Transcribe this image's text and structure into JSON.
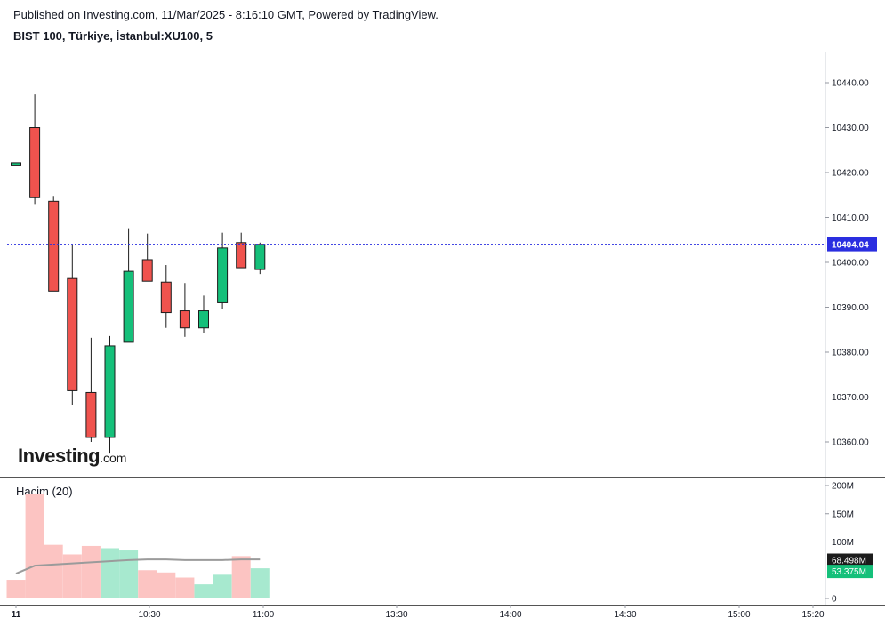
{
  "header": {
    "published": "Published on Investing.com, 11/Mar/2025 - 8:16:10 GMT, Powered by TradingView.",
    "symbol": "BIST 100, Türkiye, İstanbul:XU100, 5"
  },
  "logo": {
    "main": "Investing",
    "suffix": ".com"
  },
  "colors": {
    "up": "#15c07a",
    "down": "#f0534e",
    "up_vol": "#a7e9cf",
    "down_vol": "#fcc4c2",
    "last_price_line": "#2a2ee0",
    "ma_line": "#9b9b9b"
  },
  "chart_data": [
    {
      "type": "candlestick",
      "title": "BIST 100, Türkiye, İstanbul:XU100, 5",
      "interval_minutes": 5,
      "ylim": [
        10354,
        10444
      ],
      "y_ticks": [
        "10360.00",
        "10370.00",
        "10380.00",
        "10390.00",
        "10400.00",
        "10410.00",
        "10420.00",
        "10430.00",
        "10440.00"
      ],
      "last_price": "10404.04",
      "candles": [
        {
          "time": "09:55",
          "open": 10421.5,
          "high": 10422.2,
          "low": 10421.5,
          "close": 10422.2
        },
        {
          "time": "10:00",
          "open": 10430.0,
          "high": 10437.4,
          "low": 10413.0,
          "close": 10414.4
        },
        {
          "time": "10:05",
          "open": 10413.6,
          "high": 10414.8,
          "low": 10393.6,
          "close": 10393.6
        },
        {
          "time": "10:10",
          "open": 10396.4,
          "high": 10403.8,
          "low": 10368.2,
          "close": 10371.4
        },
        {
          "time": "10:15",
          "open": 10371.0,
          "high": 10383.2,
          "low": 10360.0,
          "close": 10361.0
        },
        {
          "time": "10:20",
          "open": 10361.0,
          "high": 10383.6,
          "low": 10357.4,
          "close": 10381.4
        },
        {
          "time": "10:25",
          "open": 10382.2,
          "high": 10407.6,
          "low": 10382.2,
          "close": 10398.0
        },
        {
          "time": "10:30",
          "open": 10400.6,
          "high": 10406.4,
          "low": 10395.8,
          "close": 10395.8
        },
        {
          "time": "10:35",
          "open": 10395.6,
          "high": 10399.4,
          "low": 10385.4,
          "close": 10388.8
        },
        {
          "time": "10:40",
          "open": 10389.2,
          "high": 10395.4,
          "low": 10383.4,
          "close": 10385.4
        },
        {
          "time": "10:45",
          "open": 10385.4,
          "high": 10392.6,
          "low": 10384.2,
          "close": 10389.2
        },
        {
          "time": "10:50",
          "open": 10391.0,
          "high": 10406.6,
          "low": 10389.6,
          "close": 10403.2
        },
        {
          "time": "10:55",
          "open": 10404.4,
          "high": 10406.6,
          "low": 10399.0,
          "close": 10398.8
        },
        {
          "time": "11:00",
          "open": 10398.4,
          "high": 10404.4,
          "low": 10397.4,
          "close": 10404.0
        }
      ]
    },
    {
      "type": "bar",
      "title": "Hacim (20)",
      "ylim": [
        -10000000,
        210000000
      ],
      "y_ticks": [
        "200M",
        "150M",
        "100M",
        "0"
      ],
      "ma_value": "68.498M",
      "last_volume": "53.375M",
      "volumes": [
        {
          "time": "09:55",
          "value": 33000000,
          "direction": "down"
        },
        {
          "time": "10:00",
          "value": 185000000,
          "direction": "down"
        },
        {
          "time": "10:05",
          "value": 95000000,
          "direction": "down"
        },
        {
          "time": "10:10",
          "value": 78000000,
          "direction": "down"
        },
        {
          "time": "10:15",
          "value": 93000000,
          "direction": "down"
        },
        {
          "time": "10:20",
          "value": 89000000,
          "direction": "up"
        },
        {
          "time": "10:25",
          "value": 85000000,
          "direction": "up"
        },
        {
          "time": "10:30",
          "value": 50000000,
          "direction": "down"
        },
        {
          "time": "10:35",
          "value": 46000000,
          "direction": "down"
        },
        {
          "time": "10:40",
          "value": 37000000,
          "direction": "down"
        },
        {
          "time": "10:45",
          "value": 25000000,
          "direction": "up"
        },
        {
          "time": "10:50",
          "value": 42000000,
          "direction": "up"
        },
        {
          "time": "10:55",
          "value": 75000000,
          "direction": "down"
        },
        {
          "time": "11:00",
          "value": 53375000,
          "direction": "up"
        }
      ],
      "ma": [
        {
          "time": "09:55",
          "value": 44000000
        },
        {
          "time": "10:00",
          "value": 58000000
        },
        {
          "time": "10:05",
          "value": 60000000
        },
        {
          "time": "10:10",
          "value": 62000000
        },
        {
          "time": "10:15",
          "value": 64000000
        },
        {
          "time": "10:20",
          "value": 66000000
        },
        {
          "time": "10:25",
          "value": 68000000
        },
        {
          "time": "10:30",
          "value": 69000000
        },
        {
          "time": "10:35",
          "value": 69000000
        },
        {
          "time": "10:40",
          "value": 68000000
        },
        {
          "time": "10:45",
          "value": 68000000
        },
        {
          "time": "10:50",
          "value": 68000000
        },
        {
          "time": "10:55",
          "value": 69000000
        },
        {
          "time": "11:00",
          "value": 69000000
        }
      ]
    }
  ],
  "x_axis": {
    "ticks": [
      {
        "label": "11",
        "time": "09:55"
      },
      {
        "label": "10:30",
        "time": "10:30"
      },
      {
        "label": "11:00",
        "time": "11:00"
      },
      {
        "label": "13:30",
        "time": "13:30"
      },
      {
        "label": "14:00",
        "time": "14:00"
      },
      {
        "label": "14:30",
        "time": "14:30"
      },
      {
        "label": "15:00",
        "time": "15:00"
      },
      {
        "label": "15:20",
        "time": "15:20"
      }
    ]
  }
}
